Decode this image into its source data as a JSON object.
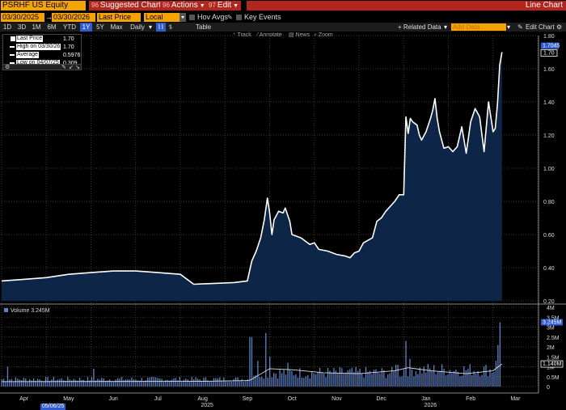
{
  "header": {
    "ticker": "PSRHF US Equity",
    "menus": [
      {
        "code": "96",
        "label": "Suggested Charts"
      },
      {
        "code": "96",
        "label": "Actions"
      },
      {
        "code": "97",
        "label": "Edit"
      }
    ],
    "title": "Line Chart"
  },
  "controls": {
    "start_date": "03/30/2025",
    "end_date": "03/30/2026",
    "field": "Last Price",
    "currency": "Local CCY",
    "hov_avgs": "Hov Avgs",
    "key_events": "Key Events"
  },
  "periods": [
    "1D",
    "3D",
    "1M",
    "6M",
    "YTD",
    "1Y",
    "5Y",
    "Max"
  ],
  "active_period": "1Y",
  "frequency": "Daily",
  "table_label": "Table",
  "related_data": "+ Related Data",
  "add_data_placeholder": "Add Data",
  "edit_chart": "Edit Chart",
  "tools": [
    "Track",
    "Annotate",
    "News",
    "Zoom"
  ],
  "legend": {
    "rows": [
      {
        "label": "Last Price",
        "value": "1.70"
      },
      {
        "label": "High on 03/30/26",
        "value": "1.70"
      },
      {
        "label": "Average",
        "value": "0.5976"
      },
      {
        "label": "Low on 04/07/25",
        "value": "0.309"
      }
    ]
  },
  "volume_legend": "Volume 3.245M",
  "date_tip": "05/06/25",
  "colors": {
    "accent_orange": "#f4a300",
    "menu_red": "#b3261e",
    "area_fill": "#0d2647",
    "line": "#ffffff",
    "volume_bar": "#5a84c8",
    "active_blue": "#2f5bd3"
  },
  "chart_data": {
    "type": "area",
    "x_labels": [
      "Apr",
      "May",
      "Jun",
      "Jul",
      "Aug",
      "Sep",
      "Oct",
      "Nov",
      "Dec",
      "Jan",
      "Feb",
      "Mar"
    ],
    "year_labels": [
      "2025",
      "2026"
    ],
    "price": {
      "ylim": [
        0.2,
        1.8
      ],
      "yticks": [
        "0.20",
        "0.40",
        "0.60",
        "0.80",
        "1.00",
        "1.20",
        "1.40",
        "1.60",
        "1.80"
      ],
      "last_tag": "1.70",
      "high_tag": "1.7045",
      "points": [
        [
          0,
          0.32
        ],
        [
          0.5,
          0.33
        ],
        [
          1,
          0.34
        ],
        [
          1.5,
          0.36
        ],
        [
          2,
          0.37
        ],
        [
          2.5,
          0.38
        ],
        [
          3,
          0.38
        ],
        [
          3.5,
          0.37
        ],
        [
          4,
          0.36
        ],
        [
          4.3,
          0.3
        ],
        [
          5.2,
          0.31
        ],
        [
          5.5,
          0.32
        ],
        [
          5.6,
          0.44
        ],
        [
          5.7,
          0.5
        ],
        [
          5.8,
          0.58
        ],
        [
          5.88,
          0.69
        ],
        [
          5.95,
          0.82
        ],
        [
          6.0,
          0.73
        ],
        [
          6.05,
          0.6
        ],
        [
          6.1,
          0.69
        ],
        [
          6.2,
          0.74
        ],
        [
          6.3,
          0.73
        ],
        [
          6.35,
          0.76
        ],
        [
          6.45,
          0.68
        ],
        [
          6.5,
          0.6
        ],
        [
          6.7,
          0.58
        ],
        [
          6.9,
          0.54
        ],
        [
          7.0,
          0.55
        ],
        [
          7.1,
          0.51
        ],
        [
          7.3,
          0.5
        ],
        [
          7.5,
          0.48
        ],
        [
          7.7,
          0.47
        ],
        [
          7.8,
          0.46
        ],
        [
          7.9,
          0.49
        ],
        [
          8.0,
          0.5
        ],
        [
          8.1,
          0.55
        ],
        [
          8.3,
          0.58
        ],
        [
          8.4,
          0.68
        ],
        [
          8.5,
          0.7
        ],
        [
          8.6,
          0.74
        ],
        [
          8.8,
          0.8
        ],
        [
          8.9,
          0.84
        ],
        [
          9.0,
          0.84
        ],
        [
          9.05,
          1.31
        ],
        [
          9.1,
          1.21
        ],
        [
          9.15,
          1.3
        ],
        [
          9.2,
          1.28
        ],
        [
          9.3,
          1.26
        ],
        [
          9.35,
          1.2
        ],
        [
          9.4,
          1.17
        ],
        [
          9.5,
          1.22
        ],
        [
          9.6,
          1.3
        ],
        [
          9.65,
          1.35
        ],
        [
          9.7,
          1.42
        ],
        [
          9.75,
          1.3
        ],
        [
          9.8,
          1.22
        ],
        [
          9.9,
          1.12
        ],
        [
          10.0,
          1.13
        ],
        [
          10.1,
          1.1
        ],
        [
          10.2,
          1.13
        ],
        [
          10.3,
          1.25
        ],
        [
          10.4,
          1.09
        ],
        [
          10.5,
          1.28
        ],
        [
          10.6,
          1.36
        ],
        [
          10.7,
          1.31
        ],
        [
          10.8,
          1.1
        ],
        [
          10.9,
          1.4
        ],
        [
          11.0,
          1.22
        ],
        [
          11.05,
          1.24
        ],
        [
          11.1,
          1.39
        ],
        [
          11.15,
          1.62
        ],
        [
          11.2,
          1.7
        ]
      ]
    },
    "volume": {
      "ylim": [
        0,
        4000000
      ],
      "yticks": [
        "0",
        "0.5M",
        "1M",
        "1.5M",
        "2M",
        "2.5M",
        "3M",
        "3.5M",
        "4M"
      ],
      "last_tag": "3.245M",
      "avg_tag": "1.140M"
    }
  }
}
